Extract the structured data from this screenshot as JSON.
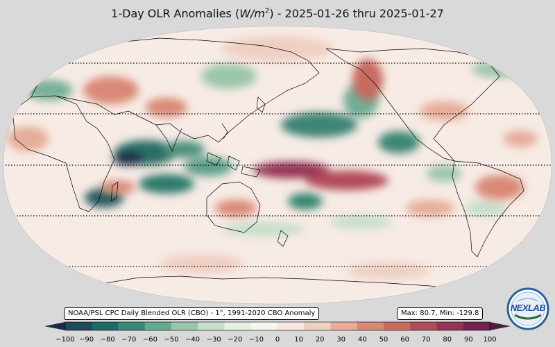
{
  "title": {
    "prefix": "1-Day OLR Anomalies (",
    "unit_base": "W/m",
    "unit_exp": "2",
    "suffix": ") - 2025-01-26 thru 2025-01-27"
  },
  "source_note": "NOAA/PSL CPC Daily Blended OLR (CBO) - 1°, 1991-2020 CBO Anomaly",
  "stats": "Max: 80.7,  Min: -129.8",
  "logo_text": "NEXLAB",
  "colorbar": {
    "min": -100,
    "max": 100,
    "ticks": [
      "−100",
      "−90",
      "−80",
      "−70",
      "−60",
      "−50",
      "−40",
      "−30",
      "−20",
      "−10",
      "0",
      "10",
      "20",
      "30",
      "40",
      "50",
      "60",
      "70",
      "80",
      "90",
      "100"
    ],
    "colors": [
      "#1c2a4a",
      "#1f4a5a",
      "#1d6a66",
      "#3a8a78",
      "#6aa98f",
      "#9cc6ab",
      "#c6dfcb",
      "#e6efe4",
      "#f7f3ef",
      "#f6e6df",
      "#efcfc2",
      "#e6ad9a",
      "#d98a76",
      "#c86a60",
      "#b24c5a",
      "#953457",
      "#72244e",
      "#4a1c3e"
    ]
  },
  "map": {
    "ocean_color": "#f7ebe5",
    "land_outline_color": "#000000",
    "latitude_lines_deg": [
      60,
      30,
      0,
      -30,
      -60
    ]
  }
}
